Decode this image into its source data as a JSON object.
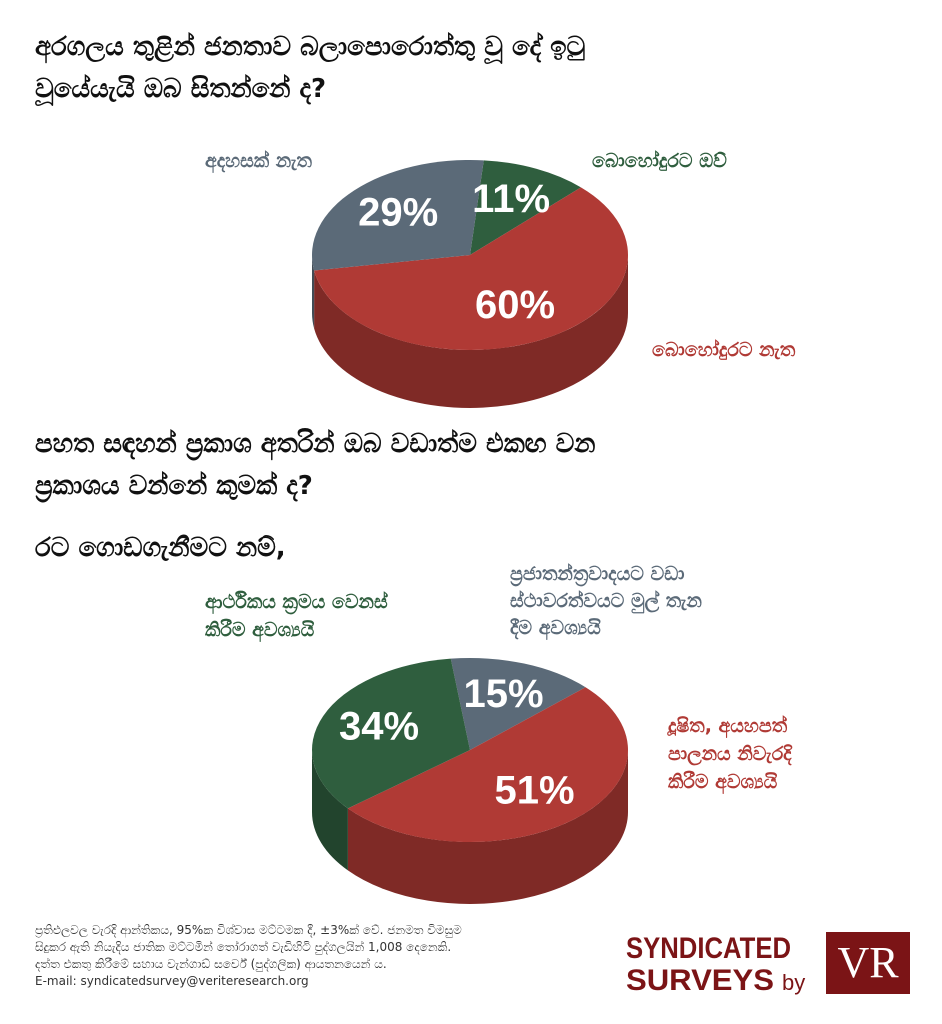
{
  "chart_data": [
    {
      "type": "pie",
      "title": [
        "අරගලය තුළින් ජනතාව බලාපොරොත්තු වූ දේ ඉටු",
        "වූයේයැයි ඔබ සිතන්නේ ද?"
      ],
      "categories": [
        [
          "බොහෝදුරට ඔව්"
        ],
        [
          "බොහෝදුරට නැත"
        ],
        [
          "අදහසක් නැත"
        ]
      ],
      "values": [
        11,
        60,
        29
      ],
      "value_labels": [
        "11%",
        "60%",
        "29%"
      ],
      "colors": [
        "#2f5e3e",
        "#b03a35",
        "#5b6a78"
      ]
    },
    {
      "type": "pie",
      "title": [
        "පහත සඳහන් ප්‍රකාශ අතරින් ඔබ වඩාත්ම එකඟ වන",
        "ප්‍රකාශය වන්නේ කුමක් ද?"
      ],
      "subtitle": "රට ගොඩගැනීමට නම්,",
      "categories": [
        [
          "ප්‍රජාතන්ත්‍රවාදයට වඩා",
          "ස්ථාවරත්වයට මුල් තැන",
          "දීම අවශ්‍යයි"
        ],
        [
          "දූෂිත, අයහපත්",
          "පාලනය නිවැරදි",
          "කිරීම අවශ්‍යයි"
        ],
        [
          "ආර්ථිකය ක්‍රමය වෙනස්",
          "කිරීම අවශ්‍යයි"
        ]
      ],
      "values": [
        15,
        51,
        34
      ],
      "value_labels": [
        "15%",
        "51%",
        "34%"
      ],
      "colors": [
        "#5b6a78",
        "#b03a35",
        "#2f5e3e"
      ]
    }
  ],
  "footer": {
    "note": [
      "ප්‍රතිඵලවල වැරදි ආන්තිකය, 95%ක විශ්වාස මට්ටමක දී, ±3%ක් වේ. ජනමත විමසුම",
      "සිදුකර ඇති නියැදිය ජාතික මට්ටමින් තෝරාගත් වැඩිහිටි පුද්ගලයින් 1,008 දෙනෙකි.",
      "දත්ත එකතු කිරීමේ සහාය වැන්ගාඩ් සර්වේ (පුද්ගලික) ආයතනයෙන් ය.",
      "E-mail:  syndicatedsurvey@veriteresearch.org"
    ],
    "logo": {
      "line1": "SYNDICATED",
      "line2": "SURVEYS",
      "by": "by",
      "mark": "VR"
    }
  }
}
